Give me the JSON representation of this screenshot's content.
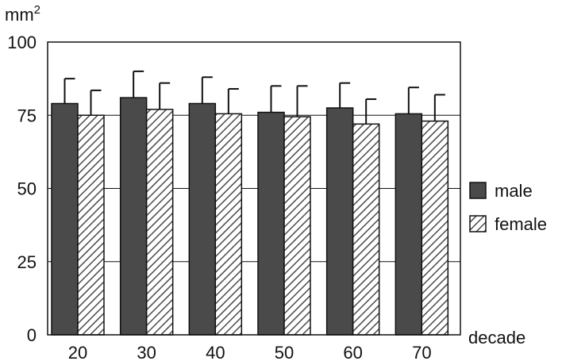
{
  "chart_data": {
    "type": "bar",
    "title": "",
    "ylabel": "mm",
    "ylabel_superscript": "2",
    "xlabel": "decade",
    "categories": [
      "20",
      "30",
      "40",
      "50",
      "60",
      "70"
    ],
    "ylim": [
      0,
      100
    ],
    "yticks": [
      "0",
      "25",
      "50",
      "75",
      "100"
    ],
    "grid": "horizontal",
    "legend_position": "right",
    "series": [
      {
        "name": "male",
        "values": [
          79,
          81,
          79,
          76,
          77.5,
          75.5
        ],
        "error": [
          8.5,
          9,
          9,
          9,
          8.5,
          9
        ],
        "color": "#4a4a4a",
        "pattern": "solid"
      },
      {
        "name": "female",
        "values": [
          75,
          77,
          75.5,
          74.5,
          72,
          73
        ],
        "error": [
          8.5,
          9,
          8.5,
          10.5,
          8.5,
          9
        ],
        "color": "#ffffff",
        "pattern": "diagonal-hatch"
      }
    ]
  }
}
